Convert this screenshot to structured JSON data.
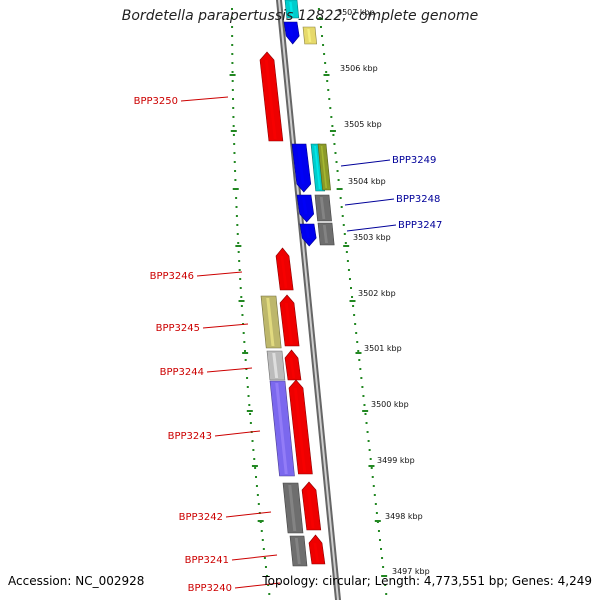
{
  "title": "Bordetella parapertussis 12822, complete genome",
  "footer": {
    "accession": "Accession: NC_002928",
    "stats": "Topology: circular; Length: 4,773,551 bp; Genes: 4,249"
  },
  "colors": {
    "reverse_label": "#cc0000",
    "forward_label": "#000099",
    "red_gene": "#ee0000",
    "blue_gene": "#0000ee",
    "ruler_dots": "#228822"
  },
  "ruler": {
    "ticks": [
      "3507 kbp",
      "3506 kbp",
      "3505 kbp",
      "3504 kbp",
      "3503 kbp",
      "3502 kbp",
      "3501 kbp",
      "3500 kbp",
      "3499 kbp",
      "3498 kbp",
      "3497 kbp"
    ]
  },
  "genes": [
    {
      "name": "BPP3250",
      "strand": "reverse"
    },
    {
      "name": "BPP3249",
      "strand": "forward"
    },
    {
      "name": "BPP3248",
      "strand": "forward"
    },
    {
      "name": "BPP3247",
      "strand": "forward"
    },
    {
      "name": "BPP3246",
      "strand": "reverse"
    },
    {
      "name": "BPP3245",
      "strand": "reverse"
    },
    {
      "name": "BPP3244",
      "strand": "reverse"
    },
    {
      "name": "BPP3243",
      "strand": "reverse"
    },
    {
      "name": "BPP3242",
      "strand": "reverse"
    },
    {
      "name": "BPP3241",
      "strand": "reverse"
    },
    {
      "name": "BPP3240",
      "strand": "reverse"
    }
  ]
}
